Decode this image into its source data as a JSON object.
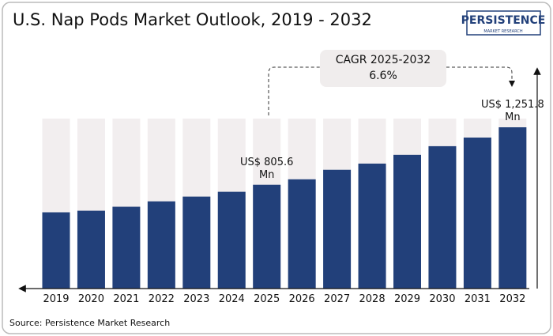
{
  "chart_data": {
    "type": "bar",
    "title": "U.S. Nap Pods Market Outlook, 2019 - 2032",
    "categories": [
      "2019",
      "2020",
      "2021",
      "2022",
      "2023",
      "2024",
      "2025",
      "2026",
      "2027",
      "2028",
      "2029",
      "2030",
      "2031",
      "2032"
    ],
    "values": [
      592,
      604,
      635,
      677,
      714,
      751,
      805.6,
      848,
      922,
      970,
      1038,
      1105,
      1172,
      1251.8
    ],
    "value_labels": [
      null,
      null,
      null,
      null,
      null,
      null,
      "US$ 805.6 Mn",
      null,
      null,
      null,
      null,
      null,
      null,
      "US$ 1,251.8 Mn"
    ],
    "color": "#22407a",
    "annotation": {
      "label": "CAGR 2025-2032",
      "value": "6.6%"
    },
    "logo": {
      "name": "PERSISTENCE",
      "tagline": "MARKET RESEARCH"
    },
    "source": "Source: Persistence Market Research"
  }
}
